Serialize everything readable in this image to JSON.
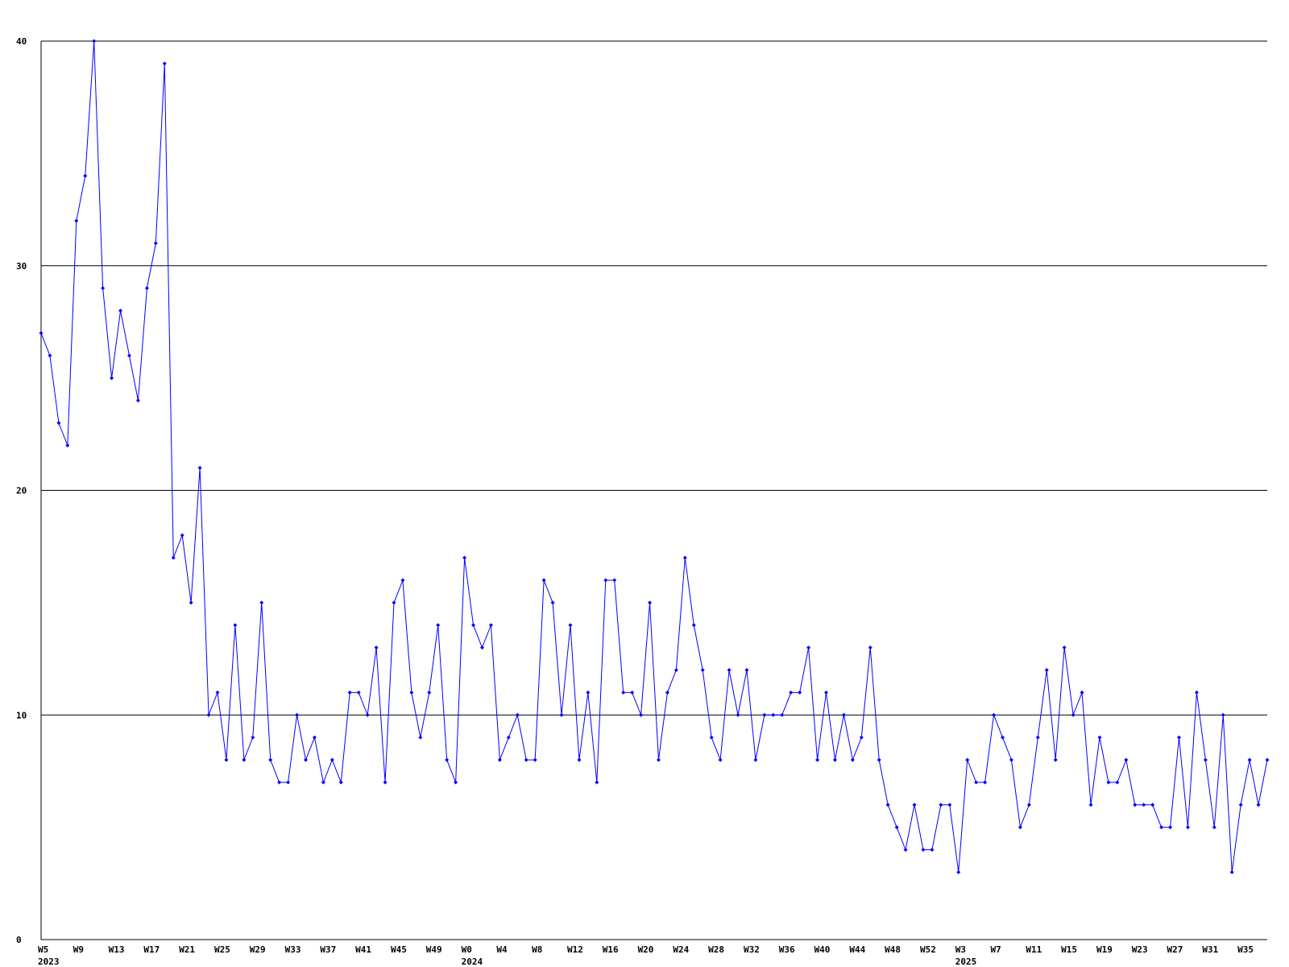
{
  "chart_data": {
    "type": "line",
    "categories": [
      "W5",
      null,
      null,
      null,
      "W9",
      null,
      null,
      null,
      "W13",
      null,
      null,
      null,
      "W17",
      null,
      null,
      null,
      "W21",
      null,
      null,
      null,
      "W25",
      null,
      null,
      null,
      "W29",
      null,
      null,
      null,
      "W33",
      null,
      null,
      null,
      "W37",
      null,
      null,
      null,
      "W41",
      null,
      null,
      null,
      "W45",
      null,
      null,
      null,
      "W49",
      null,
      null,
      null,
      "W0",
      null,
      null,
      null,
      "W4",
      null,
      null,
      null,
      "W8",
      null,
      null,
      null,
      "W12",
      null,
      null,
      null,
      "W16",
      null,
      null,
      null,
      "W20",
      null,
      null,
      null,
      "W24",
      null,
      null,
      null,
      "W28",
      null,
      null,
      null,
      "W32",
      null,
      null,
      null,
      "W36",
      null,
      null,
      null,
      "W40",
      null,
      null,
      null,
      "W44",
      null,
      null,
      null,
      "W48",
      null,
      null,
      null,
      "W52",
      null,
      null,
      null,
      "W3",
      null,
      null,
      null,
      "W7",
      null,
      null,
      null,
      "W11",
      null,
      null,
      null,
      "W15",
      null,
      null,
      null,
      "W19",
      null,
      null,
      null,
      "W23",
      null,
      null,
      null,
      "W27",
      null,
      null,
      null,
      "W31",
      null,
      null,
      null,
      "W35",
      null,
      null,
      null
    ],
    "category_years": [
      "2023",
      null,
      null,
      null,
      null,
      null,
      null,
      null,
      null,
      null,
      null,
      null,
      null,
      null,
      null,
      null,
      null,
      null,
      null,
      null,
      null,
      null,
      null,
      null,
      null,
      null,
      null,
      null,
      null,
      null,
      null,
      null,
      null,
      null,
      null,
      null,
      null,
      null,
      null,
      null,
      null,
      null,
      null,
      null,
      null,
      null,
      null,
      null,
      "2024",
      null,
      null,
      null,
      null,
      null,
      null,
      null,
      null,
      null,
      null,
      null,
      null,
      null,
      null,
      null,
      null,
      null,
      null,
      null,
      null,
      null,
      null,
      null,
      null,
      null,
      null,
      null,
      null,
      null,
      null,
      null,
      null,
      null,
      null,
      null,
      null,
      null,
      null,
      null,
      null,
      null,
      null,
      null,
      null,
      null,
      null,
      null,
      null,
      null,
      null,
      null,
      null,
      null,
      null,
      null,
      "2025",
      null,
      null,
      null,
      null,
      null,
      null,
      null,
      null,
      null,
      null,
      null,
      null,
      null,
      null,
      null,
      null,
      null,
      null,
      null,
      null,
      null,
      null,
      null,
      null,
      null,
      null,
      null,
      null,
      null,
      null,
      null
    ],
    "series": [
      {
        "color": "#0000ff",
        "values": [
          27,
          26,
          23,
          22,
          32,
          34,
          40,
          29,
          25,
          28,
          26,
          24,
          29,
          31,
          39,
          17,
          18,
          15,
          21,
          10,
          11,
          8,
          14,
          8,
          9,
          15,
          8,
          7,
          7,
          10,
          8,
          9,
          7,
          8,
          7,
          11,
          11,
          10,
          13,
          7,
          15,
          16,
          11,
          9,
          11,
          14,
          8,
          7,
          17,
          14,
          13,
          14,
          8,
          9,
          10,
          8,
          8,
          16,
          15,
          10,
          14,
          8,
          11,
          7,
          16,
          16,
          11,
          11,
          10,
          15,
          8,
          11,
          12,
          17,
          14,
          12,
          9,
          8,
          12,
          10,
          12,
          8,
          10,
          10,
          10,
          11,
          11,
          13,
          8,
          11,
          8,
          10,
          8,
          9,
          13,
          8,
          6,
          5,
          4,
          6,
          4,
          4,
          6,
          6,
          3,
          8,
          7,
          7,
          10,
          9,
          8,
          5,
          6,
          9,
          12,
          8,
          13,
          10,
          11,
          6,
          9,
          7,
          7,
          8,
          6,
          6,
          6,
          5,
          5,
          9,
          5,
          11,
          8,
          5,
          10,
          3,
          6,
          8,
          6,
          8
        ]
      }
    ],
    "ylim": [
      0,
      40
    ],
    "yticks": [
      0,
      10,
      20,
      30,
      40
    ],
    "grid": true
  }
}
